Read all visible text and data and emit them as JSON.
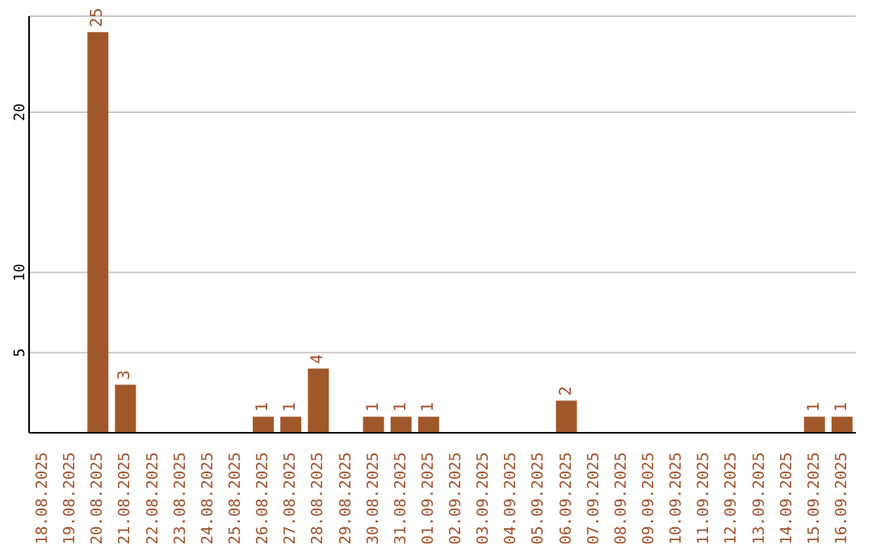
{
  "chart_data": {
    "type": "bar",
    "categories": [
      "18.08.2025",
      "19.08.2025",
      "20.08.2025",
      "21.08.2025",
      "22.08.2025",
      "23.08.2025",
      "24.08.2025",
      "25.08.2025",
      "26.08.2025",
      "27.08.2025",
      "28.08.2025",
      "29.08.2025",
      "30.08.2025",
      "31.08.2025",
      "01.09.2025",
      "02.09.2025",
      "03.09.2025",
      "04.09.2025",
      "05.09.2025",
      "06.09.2025",
      "07.09.2025",
      "08.09.2025",
      "09.09.2025",
      "10.09.2025",
      "11.09.2025",
      "12.09.2025",
      "13.09.2025",
      "14.09.2025",
      "15.09.2025",
      "16.09.2025"
    ],
    "values": [
      0,
      0,
      25,
      3,
      0,
      0,
      0,
      0,
      1,
      1,
      4,
      0,
      1,
      1,
      1,
      0,
      0,
      0,
      0,
      2,
      0,
      0,
      0,
      0,
      0,
      0,
      0,
      0,
      1,
      1
    ],
    "value_labels": [
      null,
      null,
      "25",
      "3",
      null,
      null,
      null,
      null,
      "1",
      "1",
      "4",
      null,
      "1",
      "1",
      "1",
      null,
      null,
      null,
      null,
      "2",
      null,
      null,
      null,
      null,
      null,
      null,
      null,
      null,
      "1",
      "1"
    ],
    "color": "#a0582a",
    "ylim": [
      0,
      26
    ],
    "yticks": [
      5,
      10,
      20
    ],
    "grid": "y"
  }
}
